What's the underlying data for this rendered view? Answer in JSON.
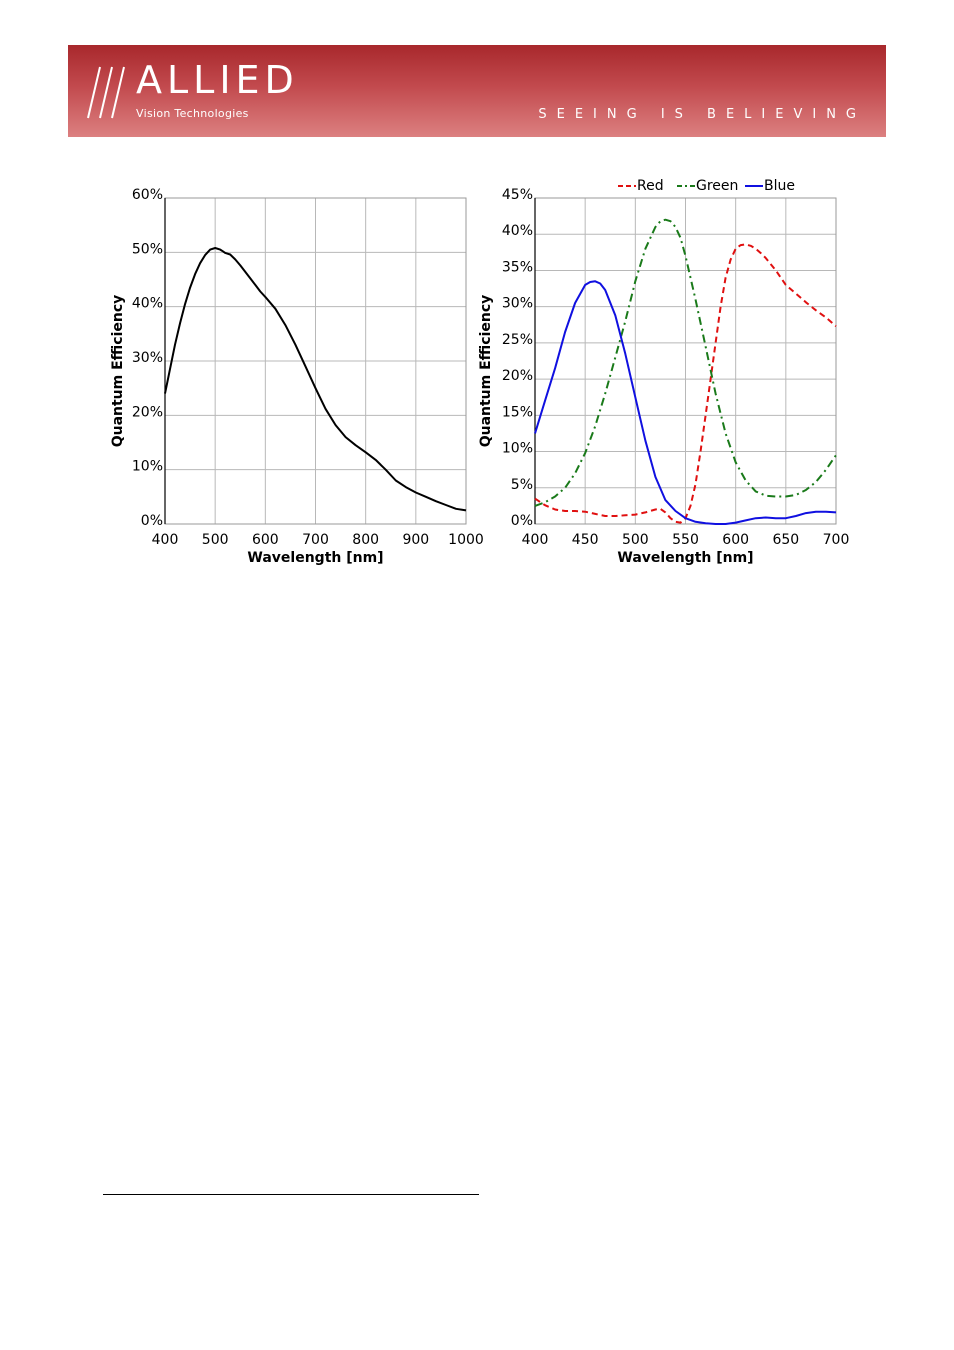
{
  "header": {
    "logo_word": "ALLIED",
    "logo_sub": "Vision Technologies",
    "slogan": "SEEING IS BELIEVING",
    "colors": {
      "banner_top": "#a8282c",
      "banner_bottom": "#dc8080",
      "text": "#ffffff"
    }
  },
  "chart_data": [
    {
      "type": "line",
      "xlabel": "Wavelength [nm]",
      "ylabel": "Quantum Efficiency",
      "xlim": [
        400,
        1000
      ],
      "ylim": [
        0,
        60
      ],
      "xticks": [
        400,
        500,
        600,
        700,
        800,
        900,
        1000
      ],
      "yticks": [
        0,
        10,
        20,
        30,
        40,
        50,
        60
      ],
      "ytick_suffix": "%",
      "grid": true,
      "series": [
        {
          "color": "#000000",
          "dash": "",
          "x": [
            400,
            410,
            420,
            430,
            440,
            450,
            460,
            470,
            480,
            490,
            500,
            510,
            515,
            520,
            530,
            540,
            550,
            560,
            570,
            580,
            590,
            600,
            620,
            640,
            660,
            680,
            700,
            720,
            740,
            760,
            780,
            800,
            820,
            840,
            860,
            880,
            900,
            920,
            940,
            960,
            980,
            1000
          ],
          "y": [
            24,
            28.5,
            33,
            37,
            40.5,
            43.5,
            46,
            48,
            49.5,
            50.5,
            50.8,
            50.5,
            50.2,
            49.9,
            49.6,
            48.7,
            47.6,
            46.4,
            45.2,
            44,
            42.8,
            41.8,
            39.6,
            36.6,
            33,
            29,
            25,
            21.2,
            18.2,
            16,
            14.5,
            13.2,
            11.8,
            10,
            8,
            6.8,
            5.8,
            5,
            4.2,
            3.5,
            2.8,
            2.5
          ]
        }
      ]
    },
    {
      "type": "line",
      "xlabel": "Wavelength [nm]",
      "ylabel": "Quantum Efficiency",
      "xlim": [
        400,
        700
      ],
      "ylim": [
        0,
        45
      ],
      "xticks": [
        400,
        450,
        500,
        550,
        600,
        650,
        700
      ],
      "yticks": [
        0,
        5,
        10,
        15,
        20,
        25,
        30,
        35,
        40,
        45
      ],
      "ytick_suffix": "%",
      "grid": true,
      "legend_position": "top",
      "series": [
        {
          "name": "Red",
          "color": "#e01010",
          "dash": "6,4",
          "x": [
            400,
            410,
            420,
            430,
            440,
            450,
            460,
            470,
            480,
            490,
            500,
            510,
            520,
            525,
            530,
            535,
            540,
            545,
            550,
            555,
            560,
            565,
            570,
            575,
            580,
            585,
            590,
            595,
            600,
            605,
            610,
            615,
            620,
            625,
            630,
            640,
            650,
            660,
            670,
            680,
            690,
            700
          ],
          "y": [
            3.5,
            2.6,
            2,
            1.8,
            1.8,
            1.7,
            1.4,
            1.1,
            1.1,
            1.2,
            1.3,
            1.6,
            2,
            2.1,
            1.6,
            0.8,
            0.3,
            0.2,
            0.8,
            2.5,
            5.5,
            10,
            15,
            20,
            25,
            30,
            34,
            36.5,
            38,
            38.5,
            38.6,
            38.4,
            38,
            37.4,
            36.7,
            35,
            33,
            31.8,
            30.6,
            29.5,
            28.5,
            27.3
          ]
        },
        {
          "name": "Green",
          "color": "#1a7a1a",
          "dash": "8,4,2,4",
          "x": [
            400,
            410,
            420,
            430,
            440,
            450,
            460,
            470,
            480,
            490,
            500,
            510,
            520,
            525,
            530,
            535,
            540,
            545,
            550,
            560,
            570,
            580,
            590,
            600,
            610,
            620,
            630,
            640,
            650,
            660,
            670,
            680,
            690,
            700
          ],
          "y": [
            2.5,
            3,
            3.8,
            5,
            7,
            9.8,
            13.5,
            18,
            23,
            28,
            33.5,
            38,
            41,
            41.8,
            42,
            41.8,
            41,
            39.5,
            37,
            31,
            24.5,
            18,
            12.5,
            8.5,
            6,
            4.5,
            3.9,
            3.8,
            3.8,
            4,
            4.7,
            5.8,
            7.5,
            9.5
          ]
        },
        {
          "name": "Blue",
          "color": "#1010e0",
          "dash": "",
          "x": [
            400,
            410,
            420,
            430,
            440,
            450,
            455,
            460,
            465,
            470,
            480,
            490,
            500,
            510,
            520,
            530,
            540,
            550,
            560,
            570,
            580,
            590,
            600,
            610,
            620,
            630,
            640,
            650,
            660,
            670,
            680,
            690,
            700
          ],
          "y": [
            12.5,
            17,
            21.5,
            26.5,
            30.5,
            33,
            33.4,
            33.5,
            33.2,
            32.3,
            28.8,
            23.5,
            17.5,
            11.5,
            6.5,
            3.3,
            1.8,
            0.8,
            0.3,
            0.1,
            0,
            0,
            0.2,
            0.5,
            0.8,
            0.9,
            0.8,
            0.8,
            1.1,
            1.5,
            1.7,
            1.7,
            1.6
          ]
        }
      ]
    }
  ]
}
